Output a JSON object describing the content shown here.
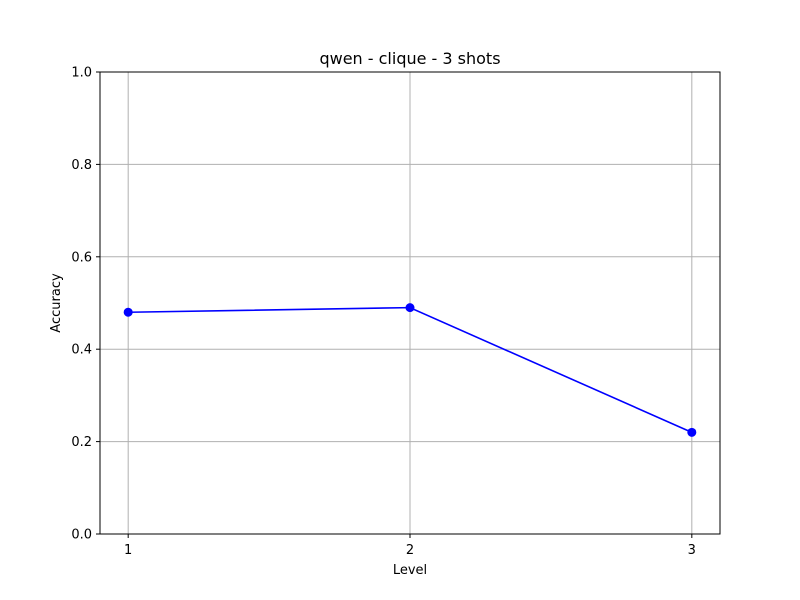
{
  "chart_data": {
    "type": "line",
    "title": "qwen - clique - 3 shots",
    "xlabel": "Level",
    "ylabel": "Accuracy",
    "x": [
      1,
      2,
      3
    ],
    "xticks": [
      "1",
      "2",
      "3"
    ],
    "yticks": [
      "0.0",
      "0.2",
      "0.4",
      "0.6",
      "0.8",
      "1.0"
    ],
    "xlim": [
      0.9,
      3.1
    ],
    "ylim": [
      0.0,
      1.0
    ],
    "grid": true,
    "series": [
      {
        "values": [
          0.48,
          0.49,
          0.22
        ],
        "color": "#0000ff",
        "marker": "circle"
      }
    ]
  }
}
